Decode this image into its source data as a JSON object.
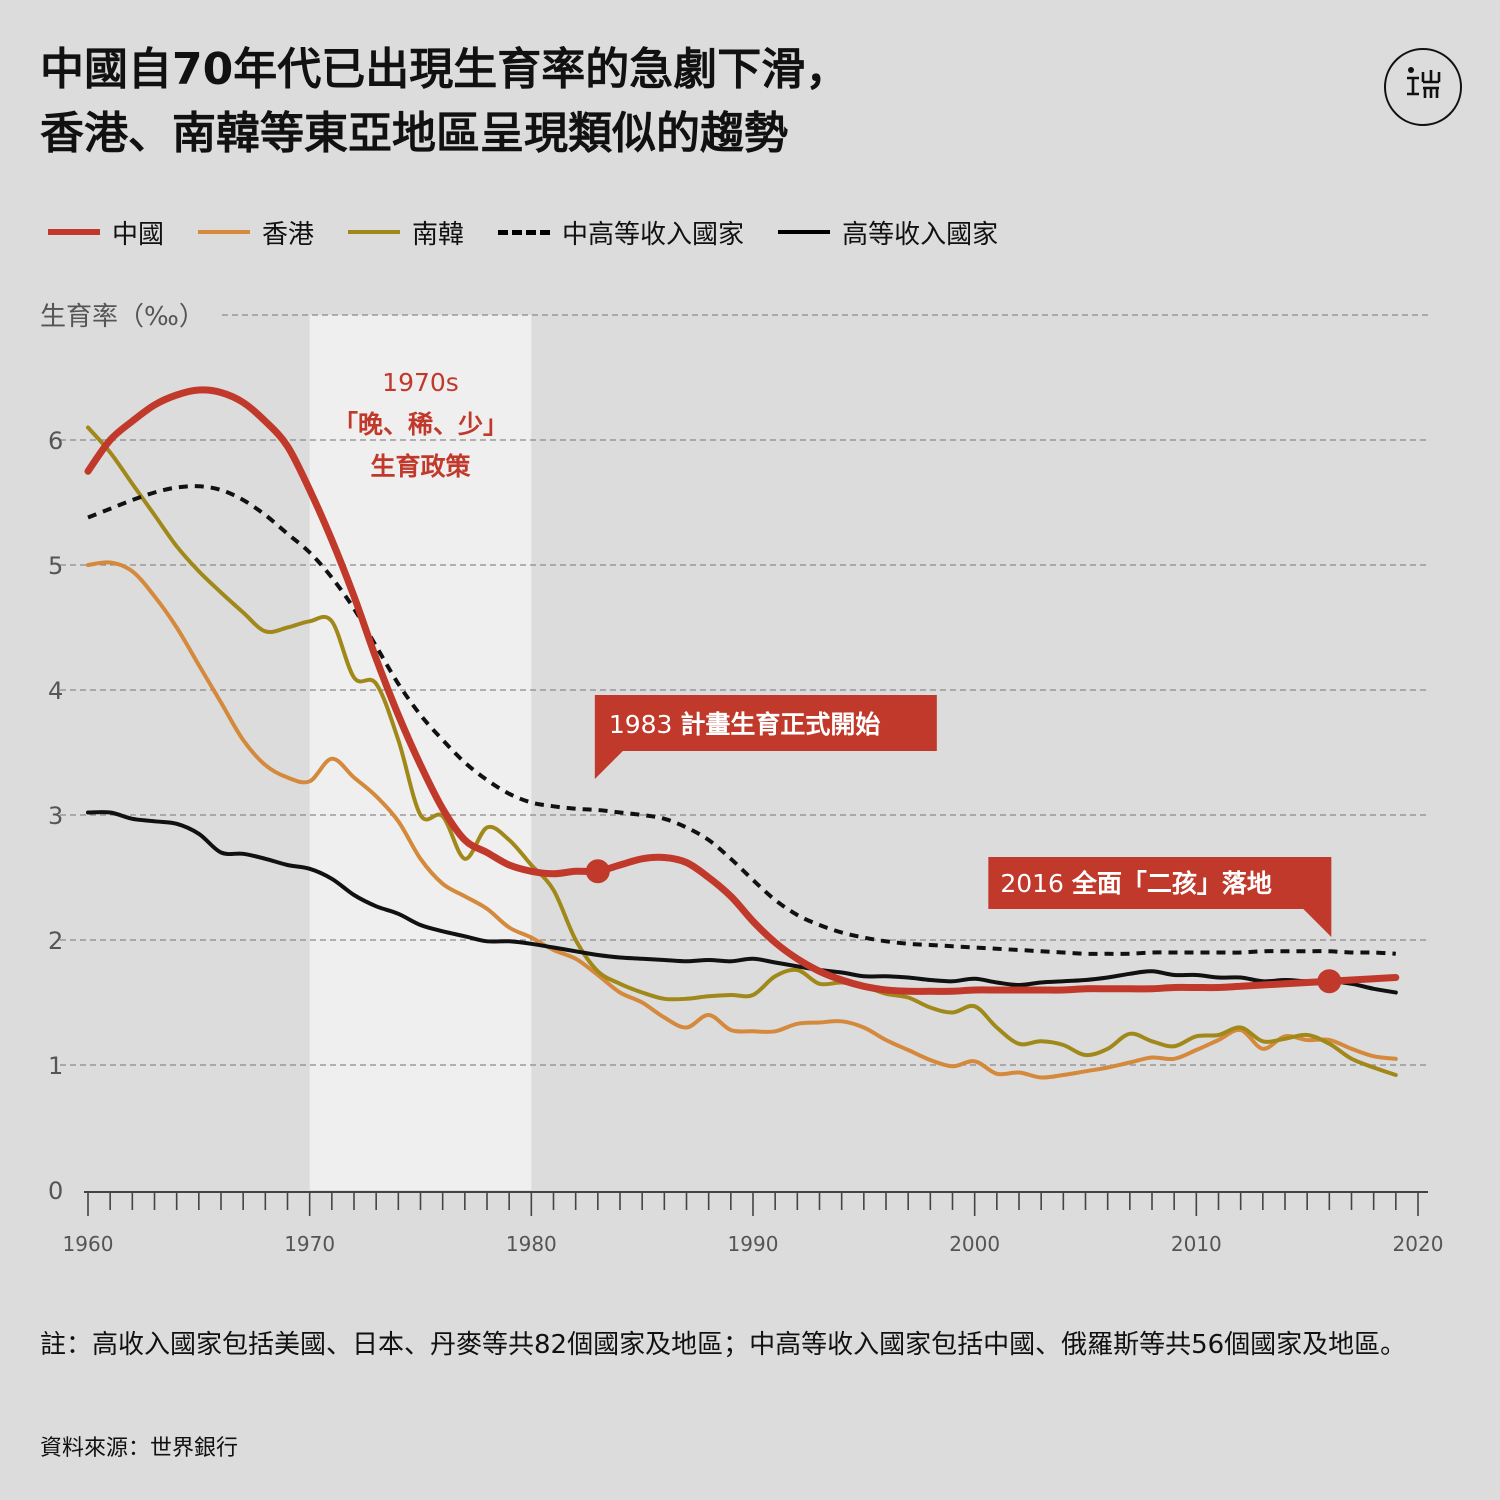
{
  "title_lines": [
    "中國自70年代已出現生育率的急劇下滑，",
    "香港、南韓等東亞地區呈現類似的趨勢"
  ],
  "logo": {
    "icon": "端-logo-icon"
  },
  "note": "註：高收入國家包括美國、日本、丹麥等共82個國家及地區；中高等收入國家包括中國、俄羅斯等共56個國家及地區。",
  "source": "資料來源：世界銀行",
  "colors": {
    "china": "#c0392b",
    "hongkong": "#d4893c",
    "korea": "#a0891a",
    "upper_middle": "#111111",
    "high_income": "#111111",
    "shade": "#efefef",
    "background": "#dcdcdc"
  },
  "chart_data": {
    "type": "line",
    "title": "中國自70年代已出現生育率的急劇下滑，香港、南韓等東亞地區呈現類似的趨勢",
    "ylabel": "生育率（‰）",
    "xlabel": "",
    "xlim": [
      1960,
      2020
    ],
    "ylim": [
      0,
      7
    ],
    "xticks": [
      1960,
      1970,
      1980,
      1990,
      2000,
      2010,
      2020
    ],
    "yticks": [
      0,
      1,
      2,
      3,
      4,
      5,
      6
    ],
    "grid": "horizontal dashed",
    "legend_position": "top",
    "series": [
      {
        "name": "中國",
        "style": "solid",
        "color_key": "china",
        "x": [
          1960,
          1961,
          1962,
          1963,
          1964,
          1965,
          1966,
          1967,
          1968,
          1969,
          1970,
          1971,
          1972,
          1973,
          1974,
          1975,
          1976,
          1977,
          1978,
          1979,
          1980,
          1981,
          1982,
          1983,
          1984,
          1985,
          1986,
          1987,
          1988,
          1989,
          1990,
          1991,
          1992,
          1993,
          1994,
          1995,
          1996,
          1997,
          1998,
          1999,
          2000,
          2001,
          2002,
          2003,
          2004,
          2005,
          2006,
          2007,
          2008,
          2009,
          2010,
          2011,
          2012,
          2013,
          2014,
          2015,
          2016,
          2017,
          2018,
          2019
        ],
        "y": [
          5.75,
          6.0,
          6.15,
          6.28,
          6.36,
          6.4,
          6.38,
          6.3,
          6.15,
          5.95,
          5.6,
          5.2,
          4.75,
          4.25,
          3.8,
          3.4,
          3.05,
          2.8,
          2.7,
          2.6,
          2.55,
          2.53,
          2.55,
          2.55,
          2.6,
          2.65,
          2.66,
          2.62,
          2.5,
          2.35,
          2.15,
          1.98,
          1.85,
          1.75,
          1.68,
          1.63,
          1.6,
          1.59,
          1.59,
          1.59,
          1.6,
          1.6,
          1.6,
          1.6,
          1.6,
          1.61,
          1.61,
          1.61,
          1.61,
          1.62,
          1.62,
          1.62,
          1.63,
          1.64,
          1.65,
          1.66,
          1.67,
          1.68,
          1.69,
          1.7
        ]
      },
      {
        "name": "香港",
        "style": "solid",
        "color_key": "hongkong",
        "x": [
          1960,
          1961,
          1962,
          1963,
          1964,
          1965,
          1966,
          1967,
          1968,
          1969,
          1970,
          1971,
          1972,
          1973,
          1974,
          1975,
          1976,
          1977,
          1978,
          1979,
          1980,
          1981,
          1982,
          1983,
          1984,
          1985,
          1986,
          1987,
          1988,
          1989,
          1990,
          1991,
          1992,
          1993,
          1994,
          1995,
          1996,
          1997,
          1998,
          1999,
          2000,
          2001,
          2002,
          2003,
          2004,
          2005,
          2006,
          2007,
          2008,
          2009,
          2010,
          2011,
          2012,
          2013,
          2014,
          2015,
          2016,
          2017,
          2018,
          2019
        ],
        "y": [
          5.0,
          5.02,
          4.95,
          4.75,
          4.5,
          4.2,
          3.9,
          3.6,
          3.4,
          3.3,
          3.27,
          3.45,
          3.3,
          3.15,
          2.95,
          2.65,
          2.45,
          2.35,
          2.25,
          2.1,
          2.02,
          1.92,
          1.85,
          1.72,
          1.58,
          1.5,
          1.38,
          1.3,
          1.4,
          1.28,
          1.27,
          1.27,
          1.33,
          1.34,
          1.35,
          1.3,
          1.2,
          1.12,
          1.04,
          0.99,
          1.03,
          0.93,
          0.94,
          0.9,
          0.92,
          0.95,
          0.98,
          1.02,
          1.06,
          1.05,
          1.12,
          1.2,
          1.28,
          1.13,
          1.23,
          1.2,
          1.2,
          1.13,
          1.07,
          1.05
        ]
      },
      {
        "name": "南韓",
        "style": "solid",
        "color_key": "korea",
        "x": [
          1960,
          1961,
          1962,
          1963,
          1964,
          1965,
          1966,
          1967,
          1968,
          1969,
          1970,
          1971,
          1972,
          1973,
          1974,
          1975,
          1976,
          1977,
          1978,
          1979,
          1980,
          1981,
          1982,
          1983,
          1984,
          1985,
          1986,
          1987,
          1988,
          1989,
          1990,
          1991,
          1992,
          1993,
          1994,
          1995,
          1996,
          1997,
          1998,
          1999,
          2000,
          2001,
          2002,
          2003,
          2004,
          2005,
          2006,
          2007,
          2008,
          2009,
          2010,
          2011,
          2012,
          2013,
          2014,
          2015,
          2016,
          2017,
          2018,
          2019
        ],
        "y": [
          6.1,
          5.9,
          5.65,
          5.4,
          5.15,
          4.95,
          4.78,
          4.62,
          4.47,
          4.5,
          4.55,
          4.55,
          4.1,
          4.05,
          3.6,
          3.0,
          2.99,
          2.65,
          2.9,
          2.8,
          2.6,
          2.4,
          2.0,
          1.75,
          1.65,
          1.58,
          1.53,
          1.53,
          1.55,
          1.56,
          1.56,
          1.71,
          1.76,
          1.65,
          1.66,
          1.63,
          1.57,
          1.54,
          1.46,
          1.42,
          1.47,
          1.3,
          1.17,
          1.19,
          1.16,
          1.08,
          1.13,
          1.25,
          1.19,
          1.15,
          1.23,
          1.24,
          1.3,
          1.19,
          1.21,
          1.24,
          1.17,
          1.05,
          0.98,
          0.92
        ]
      },
      {
        "name": "中高等收入國家",
        "style": "dashed",
        "color_key": "upper_middle",
        "x": [
          1960,
          1961,
          1962,
          1963,
          1964,
          1965,
          1966,
          1967,
          1968,
          1969,
          1970,
          1971,
          1972,
          1973,
          1974,
          1975,
          1976,
          1977,
          1978,
          1979,
          1980,
          1981,
          1982,
          1983,
          1984,
          1985,
          1986,
          1987,
          1988,
          1989,
          1990,
          1991,
          1992,
          1993,
          1994,
          1995,
          1996,
          1997,
          1998,
          1999,
          2000,
          2001,
          2002,
          2003,
          2004,
          2005,
          2006,
          2007,
          2008,
          2009,
          2010,
          2011,
          2012,
          2013,
          2014,
          2015,
          2016,
          2017,
          2018,
          2019
        ],
        "y": [
          5.38,
          5.45,
          5.52,
          5.58,
          5.62,
          5.63,
          5.6,
          5.52,
          5.4,
          5.25,
          5.1,
          4.9,
          4.65,
          4.35,
          4.05,
          3.8,
          3.6,
          3.42,
          3.28,
          3.17,
          3.1,
          3.07,
          3.05,
          3.04,
          3.02,
          3.0,
          2.97,
          2.9,
          2.8,
          2.65,
          2.48,
          2.32,
          2.2,
          2.12,
          2.06,
          2.02,
          1.99,
          1.97,
          1.96,
          1.95,
          1.94,
          1.93,
          1.92,
          1.91,
          1.9,
          1.89,
          1.89,
          1.89,
          1.9,
          1.9,
          1.9,
          1.9,
          1.9,
          1.91,
          1.91,
          1.91,
          1.91,
          1.9,
          1.9,
          1.89
        ]
      },
      {
        "name": "高等收入國家",
        "style": "solid",
        "color_key": "high_income",
        "x": [
          1960,
          1961,
          1962,
          1963,
          1964,
          1965,
          1966,
          1967,
          1968,
          1969,
          1970,
          1971,
          1972,
          1973,
          1974,
          1975,
          1976,
          1977,
          1978,
          1979,
          1980,
          1981,
          1982,
          1983,
          1984,
          1985,
          1986,
          1987,
          1988,
          1989,
          1990,
          1991,
          1992,
          1993,
          1994,
          1995,
          1996,
          1997,
          1998,
          1999,
          2000,
          2001,
          2002,
          2003,
          2004,
          2005,
          2006,
          2007,
          2008,
          2009,
          2010,
          2011,
          2012,
          2013,
          2014,
          2015,
          2016,
          2017,
          2018,
          2019
        ],
        "y": [
          3.02,
          3.02,
          2.97,
          2.95,
          2.93,
          2.85,
          2.7,
          2.69,
          2.65,
          2.6,
          2.57,
          2.49,
          2.36,
          2.27,
          2.21,
          2.12,
          2.07,
          2.03,
          1.99,
          1.99,
          1.97,
          1.94,
          1.91,
          1.88,
          1.86,
          1.85,
          1.84,
          1.83,
          1.84,
          1.83,
          1.85,
          1.82,
          1.79,
          1.76,
          1.74,
          1.71,
          1.71,
          1.7,
          1.68,
          1.67,
          1.69,
          1.66,
          1.64,
          1.66,
          1.67,
          1.68,
          1.7,
          1.73,
          1.75,
          1.72,
          1.72,
          1.7,
          1.7,
          1.67,
          1.68,
          1.67,
          1.67,
          1.65,
          1.61,
          1.58
        ]
      }
    ],
    "shaded_range": {
      "x": [
        1970,
        1980
      ],
      "label_lines": [
        "1970s",
        "「晚、稀、少」",
        "生育政策"
      ]
    },
    "annotations": [
      {
        "text_year": "1983",
        "text_bold": "計畫生育正式開始",
        "point": {
          "series": "中國",
          "x": 1983,
          "y": 2.55
        }
      },
      {
        "text_year": "2016",
        "text_bold": "全面「二孩」落地",
        "point": {
          "series": "中國",
          "x": 2016,
          "y": 1.67
        }
      }
    ]
  }
}
